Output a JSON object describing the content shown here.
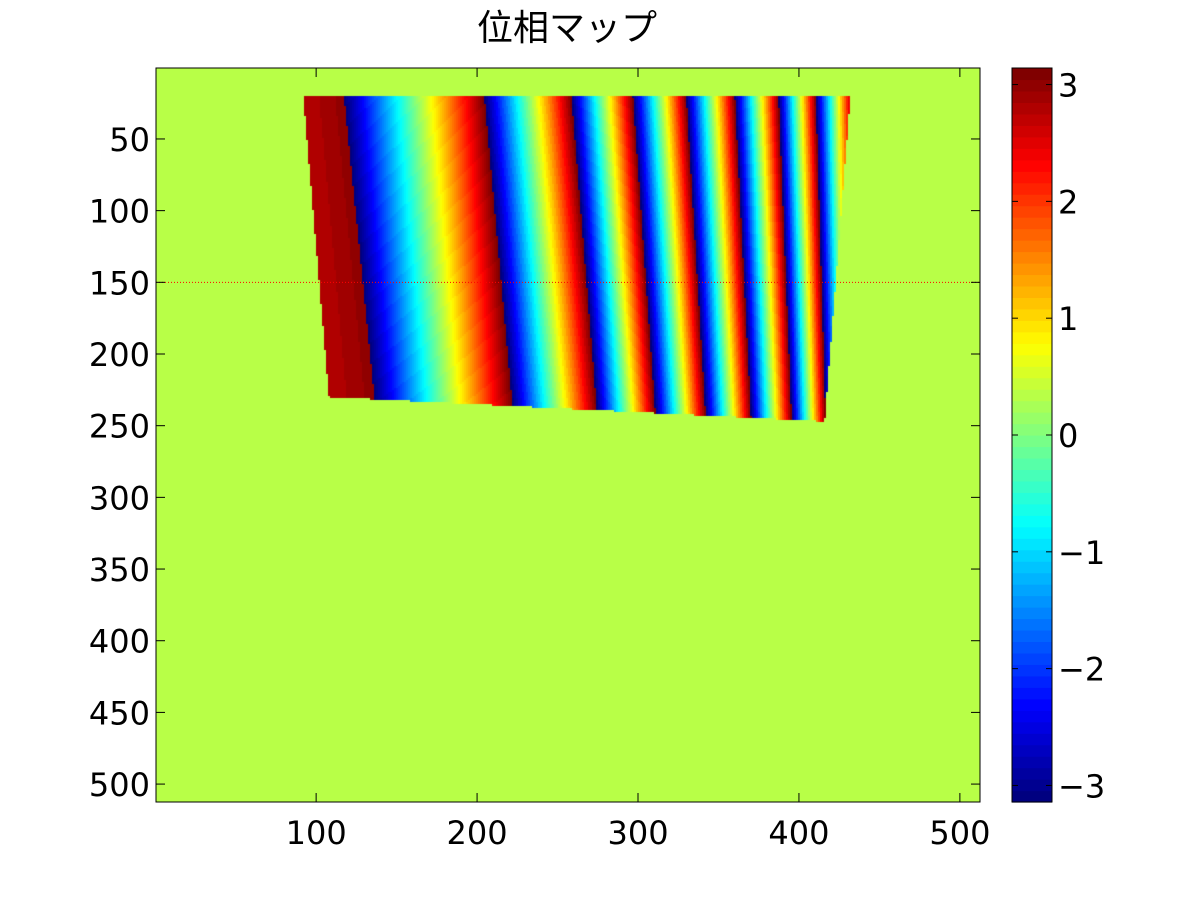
{
  "chart_data": {
    "type": "heatmap",
    "title": "位相マップ",
    "colormap": "jet",
    "background_value": 0.3,
    "xlim": [
      0.5,
      512.5
    ],
    "ylim": [
      0.5,
      512.5
    ],
    "y_reversed": true,
    "x_ticks": [
      100,
      200,
      300,
      400,
      500
    ],
    "x_tick_labels": [
      "100",
      "200",
      "300",
      "400",
      "500"
    ],
    "y_ticks": [
      50,
      100,
      150,
      200,
      250,
      300,
      350,
      400,
      450,
      500
    ],
    "y_tick_labels": [
      "50",
      "100",
      "150",
      "200",
      "250",
      "300",
      "350",
      "400",
      "450",
      "500"
    ],
    "colorbar": {
      "limits": [
        -3.1416,
        3.1416
      ],
      "ticks": [
        -3,
        -2,
        -1,
        0,
        1,
        2,
        3
      ],
      "tick_labels": [
        "−3",
        "−2",
        "−1",
        "0",
        "1",
        "2",
        "3"
      ],
      "levels": 64
    },
    "pattern_region": {
      "top": {
        "y": 20,
        "x_start": 92,
        "x_end": 432
      },
      "bottom": {
        "y_left": 230,
        "y_right": 247,
        "x_start": 108,
        "x_end": 416
      }
    },
    "phase_wraps_x_at_row_150": [
      129,
      215,
      268,
      305,
      337,
      366,
      392,
      414
    ],
    "wrap_drift_per_row": 0.09,
    "reference_line": {
      "y": 150,
      "color": "#ff0000",
      "style": "dotted"
    }
  }
}
